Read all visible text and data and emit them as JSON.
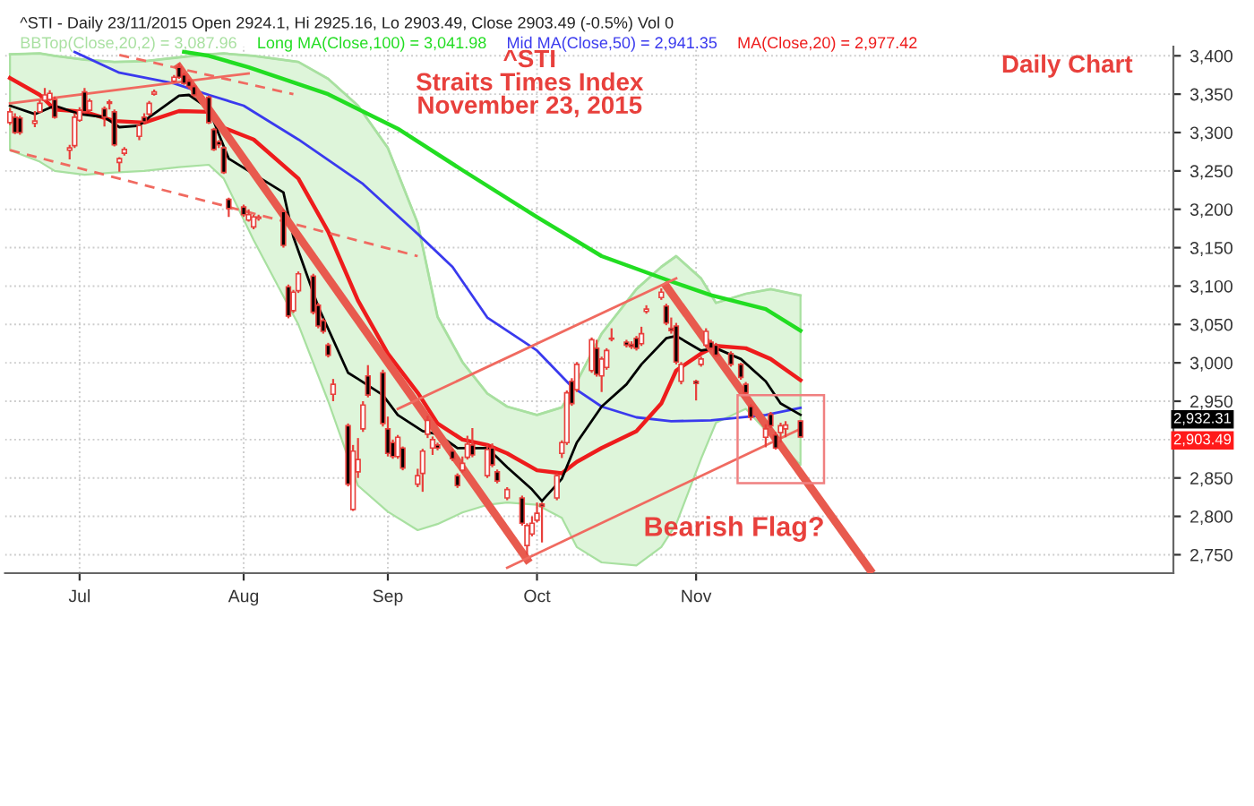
{
  "chart_data": {
    "type": "candlestick",
    "title": "^STI - Daily 23/11/2015 Open 2924.1, Hi 2925.16, Lo 2903.49, Close 2903.49 (-0.5%) Vol 0",
    "annotations": [
      "^STI",
      "Straits Times Index",
      "November 23, 2015",
      "Daily Chart",
      "Bearish Flag?",
      "2,932.31",
      "2,903.49"
    ],
    "xlim": [
      "2015-06-16",
      "2016-02-06"
    ],
    "xticks": [
      {
        "value": "2015-07-01",
        "label": "Jul"
      },
      {
        "value": "2015-08-03",
        "label": "Aug"
      },
      {
        "value": "2015-09-01",
        "label": "Sep"
      },
      {
        "value": "2015-10-01",
        "label": "Oct"
      },
      {
        "value": "2015-11-02",
        "label": "Nov"
      }
    ],
    "ylim": [
      2726,
      3412
    ],
    "yticks": [
      {
        "value": 2750,
        "label": "2,750"
      },
      {
        "value": 2800,
        "label": "2,800"
      },
      {
        "value": 2850,
        "label": "2,850"
      },
      {
        "value": 2900,
        "label": null
      },
      {
        "value": 2950,
        "label": "2,950"
      },
      {
        "value": 3000,
        "label": "3,000"
      },
      {
        "value": 3050,
        "label": "3,050"
      },
      {
        "value": 3100,
        "label": "3,100"
      },
      {
        "value": 3150,
        "label": "3,150"
      },
      {
        "value": 3200,
        "label": "3,200"
      },
      {
        "value": 3250,
        "label": "3,250"
      },
      {
        "value": 3300,
        "label": "3,300"
      },
      {
        "value": 3350,
        "label": "3,350"
      },
      {
        "value": 3400,
        "label": "3,400"
      }
    ],
    "grid": true,
    "legend": "top",
    "series": [
      {
        "color": "#e8403c",
        "x": [
          "2015-06-17",
          "2015-06-18",
          "2015-06-19",
          "2015-06-22",
          "2015-06-23",
          "2015-06-24",
          "2015-06-25",
          "2015-06-26",
          "2015-06-29",
          "2015-06-30",
          "2015-07-01",
          "2015-07-02",
          "2015-07-03",
          "2015-07-06",
          "2015-07-07",
          "2015-07-08",
          "2015-07-09",
          "2015-07-10",
          "2015-07-13",
          "2015-07-14",
          "2015-07-15",
          "2015-07-16",
          "2015-07-20",
          "2015-07-21",
          "2015-07-22",
          "2015-07-23",
          "2015-07-24",
          "2015-07-27",
          "2015-07-28",
          "2015-07-29",
          "2015-07-30",
          "2015-07-31",
          "2015-08-03",
          "2015-08-04",
          "2015-08-05",
          "2015-08-06",
          "2015-08-11",
          "2015-08-12",
          "2015-08-13",
          "2015-08-14",
          "2015-08-17",
          "2015-08-18",
          "2015-08-19",
          "2015-08-20",
          "2015-08-21",
          "2015-08-24",
          "2015-08-25",
          "2015-08-26",
          "2015-08-27",
          "2015-08-28",
          "2015-08-31",
          "2015-09-01",
          "2015-09-02",
          "2015-09-03",
          "2015-09-04",
          "2015-09-07",
          "2015-09-08",
          "2015-09-09",
          "2015-09-10",
          "2015-09-11",
          "2015-09-14",
          "2015-09-15",
          "2015-09-16",
          "2015-09-17",
          "2015-09-18",
          "2015-09-21",
          "2015-09-22",
          "2015-09-23",
          "2015-09-25",
          "2015-09-28",
          "2015-09-29",
          "2015-09-30",
          "2015-10-01",
          "2015-10-02",
          "2015-10-05",
          "2015-10-06",
          "2015-10-07",
          "2015-10-08",
          "2015-10-09",
          "2015-10-12",
          "2015-10-13",
          "2015-10-14",
          "2015-10-15",
          "2015-10-16",
          "2015-10-19",
          "2015-10-20",
          "2015-10-21",
          "2015-10-22",
          "2015-10-23",
          "2015-10-26",
          "2015-10-27",
          "2015-10-28",
          "2015-10-29",
          "2015-10-30",
          "2015-11-02",
          "2015-11-03",
          "2015-11-04",
          "2015-11-05",
          "2015-11-06",
          "2015-11-09",
          "2015-11-11",
          "2015-11-12",
          "2015-11-13",
          "2015-11-16",
          "2015-11-17",
          "2015-11-18",
          "2015-11-19",
          "2015-11-20",
          "2015-11-23"
        ],
        "ohlc": [
          [
            3313,
            3332,
            3310,
            3327
          ],
          [
            3320,
            3325,
            3298,
            3300
          ],
          [
            3319,
            3322,
            3297,
            3300
          ],
          [
            3312,
            3328,
            3307,
            3315
          ],
          [
            3327,
            3342,
            3325,
            3338
          ],
          [
            3342,
            3358,
            3340,
            3349
          ],
          [
            3343,
            3355,
            3341,
            3351
          ],
          [
            3343,
            3347,
            3318,
            3320
          ],
          [
            3277,
            3284,
            3265,
            3280
          ],
          [
            3283,
            3325,
            3280,
            3320
          ],
          [
            3316,
            3333,
            3314,
            3329
          ],
          [
            3353,
            3358,
            3325,
            3327
          ],
          [
            3329,
            3344,
            3326,
            3341
          ],
          [
            3331,
            3334,
            3308,
            3320
          ],
          [
            3338,
            3343,
            3330,
            3340
          ],
          [
            3327,
            3330,
            3282,
            3284
          ],
          [
            3261,
            3268,
            3249,
            3266
          ],
          [
            3273,
            3281,
            3270,
            3278
          ],
          [
            3295,
            3312,
            3290,
            3309
          ],
          [
            3320,
            3325,
            3312,
            3314
          ],
          [
            3324,
            3341,
            3322,
            3338
          ],
          [
            3350,
            3356,
            3348,
            3353
          ],
          [
            3367,
            3375,
            3365,
            3372
          ],
          [
            3385,
            3390,
            3370,
            3372
          ],
          [
            3375,
            3378,
            3362,
            3364
          ],
          [
            3367,
            3370,
            3357,
            3360
          ],
          [
            3360,
            3362,
            3346,
            3349
          ],
          [
            3346,
            3348,
            3311,
            3313
          ],
          [
            3304,
            3306,
            3276,
            3278
          ],
          [
            3288,
            3290,
            3280,
            3284
          ],
          [
            3280,
            3282,
            3246,
            3248
          ],
          [
            3213,
            3215,
            3190,
            3201
          ],
          [
            3203,
            3206,
            3190,
            3193
          ],
          [
            3186,
            3200,
            3184,
            3193
          ],
          [
            3177,
            3193,
            3174,
            3190
          ],
          [
            3188,
            3193,
            3185,
            3190
          ],
          [
            3197,
            3200,
            3150,
            3153
          ],
          [
            3099,
            3102,
            3058,
            3061
          ],
          [
            3068,
            3095,
            3065,
            3092
          ],
          [
            3094,
            3119,
            3091,
            3116
          ],
          [
            3113,
            3116,
            3063,
            3066
          ],
          [
            3075,
            3078,
            3045,
            3048
          ],
          [
            3055,
            3058,
            3038,
            3041
          ],
          [
            3023,
            3026,
            3007,
            3010
          ],
          [
            2959,
            2979,
            2950,
            2972
          ],
          [
            2918,
            2921,
            2839,
            2842
          ],
          [
            2809,
            2893,
            2807,
            2885
          ],
          [
            2858,
            2902,
            2850,
            2874
          ],
          [
            2914,
            2950,
            2910,
            2945
          ],
          [
            2983,
            2997,
            2955,
            2958
          ],
          [
            2987,
            2991,
            2917,
            2921
          ],
          [
            2914,
            2930,
            2878,
            2882
          ],
          [
            2896,
            2900,
            2875,
            2878
          ],
          [
            2878,
            2906,
            2875,
            2903
          ],
          [
            2889,
            2891,
            2860,
            2863
          ],
          [
            2842,
            2862,
            2838,
            2853
          ],
          [
            2856,
            2888,
            2832,
            2885
          ],
          [
            2907,
            2931,
            2902,
            2925
          ],
          [
            2889,
            2904,
            2880,
            2900
          ],
          [
            2893,
            2896,
            2886,
            2889
          ],
          [
            2885,
            2888,
            2872,
            2875
          ],
          [
            2853,
            2856,
            2837,
            2840
          ],
          [
            2860,
            2878,
            2857,
            2869
          ],
          [
            2877,
            2905,
            2874,
            2894
          ],
          [
            2893,
            2915,
            2877,
            2880
          ],
          [
            2853,
            2893,
            2850,
            2887
          ],
          [
            2889,
            2895,
            2864,
            2867
          ],
          [
            2858,
            2861,
            2843,
            2846
          ],
          [
            2824,
            2838,
            2821,
            2835
          ],
          [
            2824,
            2827,
            2788,
            2791
          ],
          [
            2762,
            2791,
            2750,
            2788
          ],
          [
            2777,
            2800,
            2774,
            2791
          ],
          [
            2795,
            2818,
            2792,
            2804
          ],
          [
            2816,
            2818,
            2766,
            2813
          ],
          [
            2824,
            2856,
            2821,
            2853
          ],
          [
            2882,
            2899,
            2876,
            2896
          ],
          [
            2896,
            2964,
            2893,
            2961
          ],
          [
            2976,
            2980,
            2944,
            2947
          ],
          [
            2965,
            3001,
            2962,
            2998
          ],
          [
            2990,
            3033,
            2987,
            3030
          ],
          [
            3019,
            3030,
            2982,
            2985
          ],
          [
            2983,
            3008,
            2962,
            3005
          ],
          [
            2994,
            3019,
            2991,
            3016
          ],
          [
            3031,
            3045,
            3028,
            3032
          ],
          [
            3027,
            3030,
            3020,
            3023
          ],
          [
            3024,
            3028,
            3018,
            3021
          ],
          [
            3032,
            3035,
            3016,
            3019
          ],
          [
            3025,
            3047,
            3022,
            3038
          ],
          [
            3067,
            3075,
            3064,
            3070
          ],
          [
            3085,
            3097,
            3082,
            3092
          ],
          [
            3074,
            3077,
            3049,
            3052
          ],
          [
            3045,
            3059,
            3038,
            3042
          ],
          [
            3048,
            3052,
            2998,
            3001
          ],
          [
            2976,
            3001,
            2972,
            2998
          ],
          [
            2976,
            2978,
            2951,
            2973
          ],
          [
            2998,
            3008,
            2995,
            3005
          ],
          [
            3023,
            3045,
            3020,
            3041
          ],
          [
            3027,
            3030,
            3017,
            3019
          ],
          [
            3023,
            3026,
            3008,
            3010
          ],
          [
            3012,
            3015,
            2995,
            2998
          ],
          [
            2998,
            3000,
            2978,
            2981
          ],
          [
            2972,
            2975,
            2958,
            2961
          ],
          [
            2943,
            2946,
            2925,
            2929
          ],
          [
            2903,
            2920,
            2890,
            2914
          ],
          [
            2933,
            2936,
            2915,
            2918
          ],
          [
            2906,
            2910,
            2887,
            2889
          ],
          [
            2909,
            2922,
            2896,
            2918
          ],
          [
            2914,
            2924,
            2903,
            2919
          ],
          [
            2924.1,
            2925.16,
            2903.49,
            2903.49
          ]
        ]
      },
      {
        "type": "line",
        "name": "BBTop(Close,20,2) = 3,087.96",
        "color": "#a8e0a0",
        "x": [
          "2015-06-17",
          "2015-06-23",
          "2015-06-26",
          "2015-07-02",
          "2015-07-08",
          "2015-07-14",
          "2015-07-21",
          "2015-07-27",
          "2015-07-30",
          "2015-08-05",
          "2015-08-14",
          "2015-08-20",
          "2015-08-26",
          "2015-09-01",
          "2015-09-07",
          "2015-09-11",
          "2015-09-16",
          "2015-09-21",
          "2015-09-25",
          "2015-10-01",
          "2015-10-06",
          "2015-10-09",
          "2015-10-14",
          "2015-10-21",
          "2015-10-26",
          "2015-10-29",
          "2015-11-03",
          "2015-11-06",
          "2015-11-12",
          "2015-11-17",
          "2015-11-23"
        ],
        "values": [
          3402,
          3403,
          3400,
          3395,
          3392,
          3393,
          3398,
          3402,
          3403,
          3400,
          3392,
          3370,
          3335,
          3280,
          3182,
          3060,
          3001,
          2960,
          2943,
          2932,
          2942,
          2975,
          3038,
          3096,
          3125,
          3139,
          3110,
          3078,
          3090,
          3096,
          3087.96
        ]
      },
      {
        "type": "line",
        "name": "Long MA(Close,100) = 3,041.98",
        "color": "#22dd22",
        "x": [
          "2015-07-22",
          "2015-07-27",
          "2015-08-04",
          "2015-08-20",
          "2015-09-03",
          "2015-09-16",
          "2015-10-01",
          "2015-10-14",
          "2015-10-28",
          "2015-11-05",
          "2015-11-16",
          "2015-11-23"
        ],
        "values": [
          3405,
          3400,
          3385,
          3350,
          3305,
          3251,
          3190,
          3139,
          3106,
          3088,
          3070,
          3041.98
        ]
      },
      {
        "type": "line",
        "name": "Mid MA(Close,50) = 2,941.35",
        "color": "#3a3aee",
        "x": [
          "2015-06-30",
          "2015-07-09",
          "2015-07-20",
          "2015-07-27",
          "2015-08-03",
          "2015-08-14",
          "2015-08-27",
          "2015-09-07",
          "2015-09-14",
          "2015-09-21",
          "2015-10-01",
          "2015-10-08",
          "2015-10-14",
          "2015-10-21",
          "2015-10-28",
          "2015-11-05",
          "2015-11-16",
          "2015-11-23"
        ],
        "values": [
          3405,
          3378,
          3364,
          3349,
          3335,
          3291,
          3233,
          3168,
          3125,
          3059,
          3016,
          2969,
          2943,
          2929,
          2924,
          2925,
          2932,
          2941.35
        ]
      },
      {
        "type": "line",
        "name": "MA(Close,20) = 2,977.42",
        "color": "#ee1c1c",
        "x": [
          "2015-06-17",
          "2015-06-23",
          "2015-06-26",
          "2015-07-02",
          "2015-07-08",
          "2015-07-14",
          "2015-07-21",
          "2015-07-27",
          "2015-07-30",
          "2015-08-05",
          "2015-08-14",
          "2015-08-20",
          "2015-08-26",
          "2015-09-01",
          "2015-09-07",
          "2015-09-11",
          "2015-09-16",
          "2015-09-21",
          "2015-09-25",
          "2015-10-01",
          "2015-10-06",
          "2015-10-09",
          "2015-10-14",
          "2015-10-21",
          "2015-10-26",
          "2015-10-29",
          "2015-11-03",
          "2015-11-06",
          "2015-11-12",
          "2015-11-17",
          "2015-11-23"
        ],
        "values": [
          3371,
          3349,
          3330,
          3327,
          3315,
          3313,
          3328,
          3327,
          3306,
          3291,
          3240,
          3171,
          3081,
          3012,
          2961,
          2921,
          2900,
          2893,
          2882,
          2860,
          2856,
          2871,
          2889,
          2911,
          2947,
          2990,
          3012,
          3022,
          3019,
          3005,
          2977.42
        ],
        "upper": [
          3402,
          3403,
          3400,
          3395,
          3392,
          3393,
          3398,
          3402,
          3403,
          3400,
          3392,
          3370,
          3335,
          3280,
          3182,
          3060,
          3001,
          2960,
          2943,
          2932,
          2942,
          2975,
          3038,
          3096,
          3125,
          3139,
          3110,
          3078,
          3090,
          3096,
          3087.96
        ],
        "lower": [
          3277,
          3262,
          3250,
          3245,
          3248,
          3250,
          3255,
          3258,
          3240,
          3160,
          3050,
          2950,
          2840,
          2806,
          2782,
          2790,
          2805,
          2815,
          2818,
          2815,
          2798,
          2760,
          2740,
          2736,
          2760,
          2790,
          2875,
          2922,
          2940,
          2905,
          2867
        ]
      },
      {
        "type": "line",
        "color": "#000000",
        "x": [
          "2015-06-17",
          "2015-06-22",
          "2015-06-26",
          "2015-07-01",
          "2015-07-06",
          "2015-07-09",
          "2015-07-13",
          "2015-07-15",
          "2015-07-21",
          "2015-07-23",
          "2015-07-27",
          "2015-07-29",
          "2015-07-31",
          "2015-08-11",
          "2015-08-13",
          "2015-08-18",
          "2015-08-24",
          "2015-08-26",
          "2015-08-31",
          "2015-09-03",
          "2015-09-08",
          "2015-09-11",
          "2015-09-15",
          "2015-09-21",
          "2015-09-25",
          "2015-09-30",
          "2015-10-02",
          "2015-10-06",
          "2015-10-09",
          "2015-10-14",
          "2015-10-19",
          "2015-10-22",
          "2015-10-27",
          "2015-10-29",
          "2015-11-03",
          "2015-11-06",
          "2015-11-11",
          "2015-11-16",
          "2015-11-19",
          "2015-11-23"
        ],
        "values": [
          3335,
          3324,
          3335,
          3324,
          3320,
          3307,
          3309,
          3320,
          3348,
          3349,
          3331,
          3298,
          3266,
          3222,
          3164,
          3073,
          2987,
          2979,
          2958,
          2932,
          2911,
          2907,
          2889,
          2889,
          2864,
          2835,
          2820,
          2849,
          2896,
          2943,
          2972,
          2998,
          3032,
          3035,
          3016,
          3019,
          3005,
          2976,
          2947,
          2932.31
        ]
      },
      {
        "type": "line",
        "color": "#f06a60",
        "x": [
          "2015-06-17",
          "2015-08-04"
        ],
        "values": [
          3338,
          3377
        ]
      },
      {
        "type": "line",
        "color": "#f06a60",
        "line_style": "dashed",
        "x": [
          "2015-07-09",
          "2015-08-13"
        ],
        "values": [
          3401,
          3350
        ]
      },
      {
        "type": "line",
        "color": "#f06a60",
        "line_style": "dashed",
        "x": [
          "2015-06-17",
          "2015-09-07"
        ],
        "values": [
          3277,
          3139
        ]
      },
      {
        "type": "line",
        "color": "#e85a4e",
        "x": [
          "2015-07-21",
          "2015-09-29"
        ],
        "values": [
          3385,
          2744
        ]
      },
      {
        "type": "line",
        "color": "#e85a4e",
        "x": [
          "2015-10-27",
          "2015-12-07"
        ],
        "values": [
          3100,
          2730
        ]
      },
      {
        "type": "line",
        "color": "#f06a60",
        "x": [
          "2015-09-03",
          "2015-10-29"
        ],
        "values": [
          2940,
          3110
        ]
      },
      {
        "type": "line",
        "color": "#f06a60",
        "x": [
          "2015-09-25",
          "2015-11-23"
        ],
        "values": [
          2733,
          2914
        ]
      }
    ]
  }
}
